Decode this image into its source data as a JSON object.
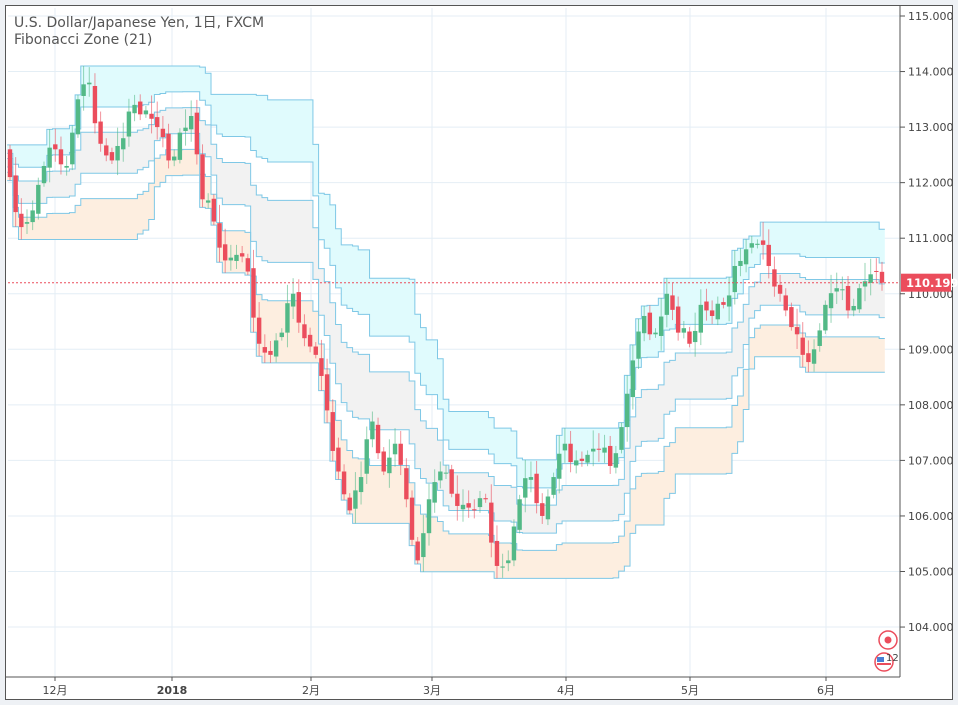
{
  "chart_data": {
    "type": "candlestick",
    "title": "U.S. Dollar/Japanese Yen, 1日, FXCM",
    "indicator": "Fibonacci Zone (21)",
    "indicator_period": 21,
    "ylim": [
      103.0,
      115.2
    ],
    "yticks": [
      "115.000",
      "114.000",
      "113.000",
      "112.000",
      "111.000",
      "110.000",
      "109.000",
      "108.000",
      "107.000",
      "106.000",
      "105.000",
      "104.000"
    ],
    "xticks": [
      "12月",
      "2018",
      "2月",
      "3月",
      "4月",
      "5月",
      "6月"
    ],
    "last_price": 110.199,
    "last_price_label": "110.199",
    "approx_closes": [
      112.1,
      111.2,
      111.5,
      112.3,
      112.6,
      112.3,
      113.5,
      113.8,
      112.7,
      112.4,
      112.8,
      113.4,
      113.3,
      113.0,
      112.4,
      112.9,
      113.2,
      111.7,
      111.3,
      110.6,
      110.7,
      110.4,
      109.1,
      108.9,
      109.3,
      110.0,
      109.2,
      108.9,
      107.9,
      106.8,
      106.1,
      106.7,
      107.7,
      106.8,
      107.3,
      106.3,
      105.2,
      106.3,
      106.8,
      106.4,
      106.2,
      106.1,
      106.3,
      105.1,
      105.2,
      106.3,
      106.7,
      106.0,
      106.7,
      107.3,
      107.0,
      107.1,
      107.2,
      106.9,
      107.6,
      108.8,
      109.6,
      109.3,
      110.0,
      109.3,
      109.1,
      109.8,
      109.6,
      109.8,
      110.5,
      110.8,
      110.9,
      110.5,
      110.0,
      109.4,
      108.9,
      109.0,
      109.8,
      110.1,
      109.7,
      110.1,
      110.35,
      110.199
    ],
    "colors": {
      "up": "#53b987",
      "down": "#eb4d5c",
      "top_zone": "#e0fbfd",
      "mid_zone": "#f2f2f2",
      "bottom_zone": "#fdeee0",
      "zone_line": "#7fc8e6",
      "price_line": "#eb4d5c"
    }
  },
  "events_badge": "12"
}
